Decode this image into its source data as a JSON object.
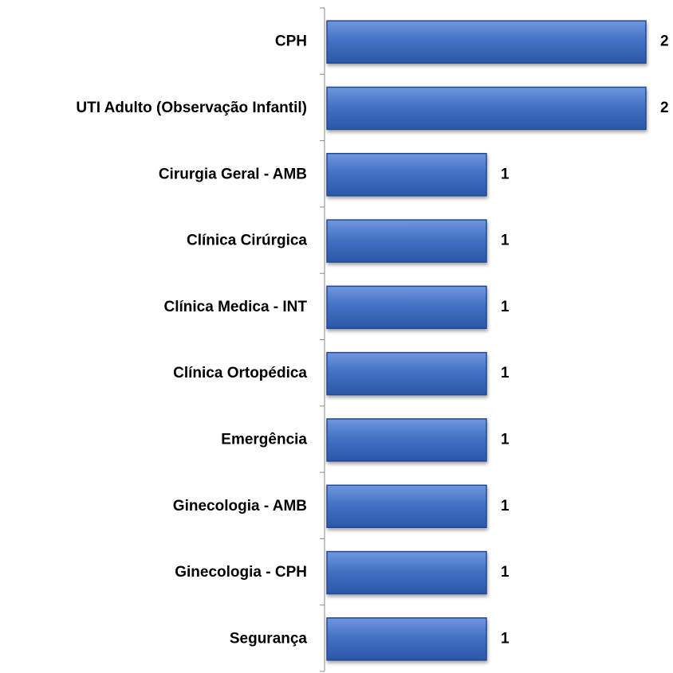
{
  "chart_data": {
    "type": "bar",
    "orientation": "horizontal",
    "categories": [
      "CPH",
      "UTI Adulto (Observação Infantil)",
      "Cirurgia Geral - AMB",
      "Clínica Cirúrgica",
      "Clínica Medica - INT",
      "Clínica Ortopédica",
      "Emergência",
      "Ginecologia - AMB",
      "Ginecologia - CPH",
      "Segurança"
    ],
    "values": [
      2,
      2,
      1,
      1,
      1,
      1,
      1,
      1,
      1,
      1
    ],
    "color": "#4472c4",
    "xlim": [
      0,
      2
    ]
  }
}
